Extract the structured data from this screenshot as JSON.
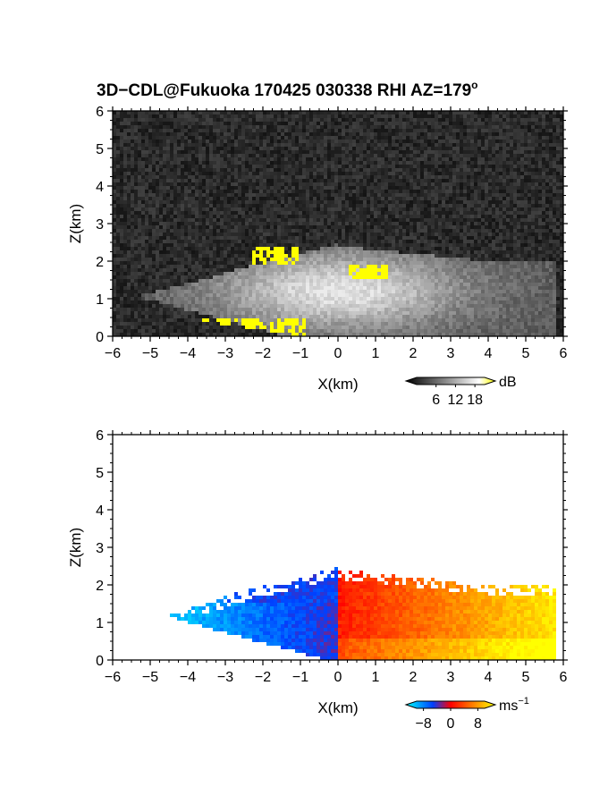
{
  "title": "3D−CDL@Fukuoka 170425 030338 RHI AZ=179",
  "title_superscript": "o",
  "chart_data": [
    {
      "type": "heatmap",
      "quantity": "reflectivity",
      "xlabel": "X(km)",
      "ylabel": "Z(km)",
      "xlim": [
        -6,
        6
      ],
      "ylim": [
        0,
        6
      ],
      "xticks": [
        "−6",
        "−5",
        "−4",
        "−3",
        "−2",
        "−1",
        "0",
        "1",
        "2",
        "3",
        "4",
        "5",
        "6"
      ],
      "yticks": [
        "0",
        "1",
        "2",
        "3",
        "4",
        "5",
        "6"
      ],
      "colorbar": {
        "unit": "dB",
        "ticks": [
          "6",
          "12",
          "18"
        ],
        "range": [
          0,
          21
        ],
        "colors": [
          "#000000",
          "#ffffff",
          "#ffff00"
        ]
      }
    },
    {
      "type": "heatmap",
      "quantity": "doppler velocity",
      "xlabel": "X(km)",
      "ylabel": "Z(km)",
      "xlim": [
        -6,
        6
      ],
      "ylim": [
        0,
        6
      ],
      "xticks": [
        "−6",
        "−5",
        "−4",
        "−3",
        "−2",
        "−1",
        "0",
        "1",
        "2",
        "3",
        "4",
        "5",
        "6"
      ],
      "yticks": [
        "0",
        "1",
        "2",
        "3",
        "4",
        "5",
        "6"
      ],
      "colorbar": {
        "unit": "ms",
        "unit_superscript": "−1",
        "ticks": [
          "−8",
          "0",
          "8"
        ],
        "range": [
          -10,
          10
        ],
        "colors": [
          "#00ffff",
          "#0040ff",
          "#ff0000",
          "#ff8000",
          "#ffff00"
        ]
      }
    }
  ]
}
